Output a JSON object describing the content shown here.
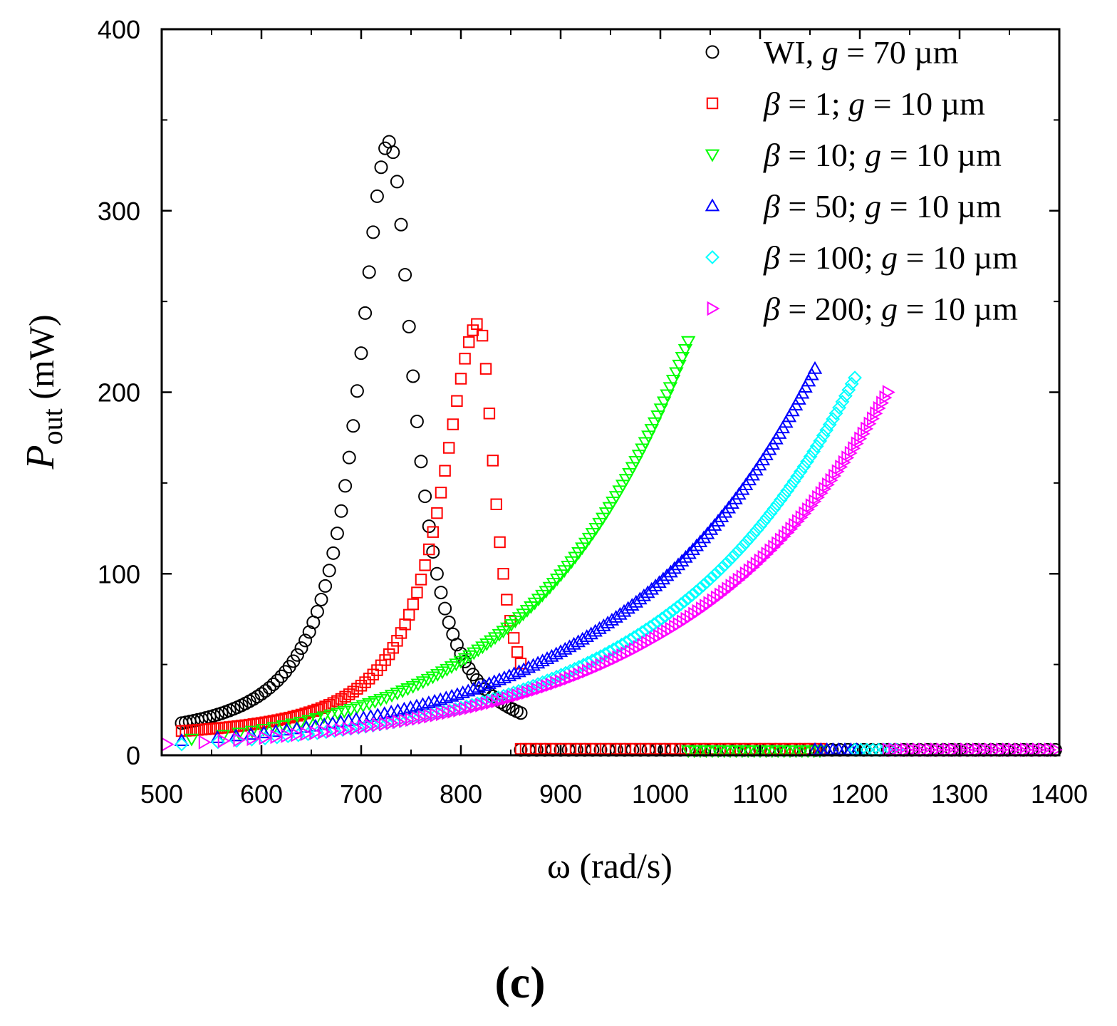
{
  "chart_data": {
    "type": "scatter",
    "title": "",
    "xlabel": "ω (rad/s)",
    "ylabel": {
      "main": "P",
      "sub": "out",
      "unit": " (mW)"
    },
    "xlim": [
      500,
      1400
    ],
    "ylim": [
      0,
      400
    ],
    "xticks": [
      500,
      600,
      700,
      800,
      900,
      1000,
      1100,
      1200,
      1300,
      1400
    ],
    "yticks": [
      0,
      100,
      200,
      300,
      400
    ],
    "grid": false,
    "legend_position": "top-right",
    "panel_label": "(c)",
    "series": [
      {
        "name": "WI, g = 70 µm",
        "label_parts": [
          "WI, ",
          "g",
          " = 70 µm"
        ],
        "marker": "circle",
        "color": "#000000",
        "model": {
          "kind": "resonance",
          "peak_x": 728,
          "peak_y": 338,
          "hw_left": 38,
          "hw_right": 30,
          "base": 7,
          "start": 520,
          "end": 860,
          "step_left": 4,
          "step_right": 4
        },
        "tail": {
          "y": 3,
          "start": 860,
          "end": 1400,
          "step": 8
        }
      },
      {
        "name": "β = 1; g = 10 µm",
        "label_parts": [
          "β",
          " = 1; ",
          "g",
          " = 10 µm"
        ],
        "marker": "square",
        "color": "#ff0000",
        "model": {
          "kind": "resonance",
          "peak_x": 818,
          "peak_y": 238,
          "hw_left": 46,
          "hw_right": 20,
          "base": 8,
          "start": 520,
          "end": 860,
          "step_left": 4,
          "step_right": 3.5
        },
        "tail": {
          "y": 3.5,
          "start": 860,
          "end": 1160,
          "step": 5
        }
      },
      {
        "name": "β = 10;  g = 10 µm",
        "label_parts": [
          "β",
          " = 10;  ",
          "g",
          " = 10 µm"
        ],
        "marker": "triangle-down",
        "color": "#00ff00",
        "model": {
          "kind": "growth",
          "x0": 530,
          "y0": 9,
          "end_x": 1028,
          "end_y": 228,
          "n": 100
        },
        "tail": {
          "y": 2.5,
          "start": 1028,
          "end": 1160,
          "step": 6
        }
      },
      {
        "name": "β = 50; g = 10 µm",
        "label_parts": [
          "β",
          " = 50; ",
          "g",
          " = 10 µm"
        ],
        "marker": "triangle-up",
        "color": "#0000ff",
        "model": {
          "kind": "growth",
          "x0": 520,
          "y0": 8,
          "end_x": 1155,
          "end_y": 213,
          "n": 120
        },
        "tail": {
          "y": 3,
          "start": 1155,
          "end": 1200,
          "step": 6
        }
      },
      {
        "name": "β = 100; g = 10 µm",
        "label_parts": [
          "β",
          " = 100; ",
          "g",
          " = 10 µm"
        ],
        "marker": "diamond",
        "color": "#00ffff",
        "model": {
          "kind": "growth",
          "x0": 520,
          "y0": 6,
          "end_x": 1195,
          "end_y": 208,
          "n": 130
        },
        "tail": {
          "y": 3,
          "start": 1195,
          "end": 1240,
          "step": 6
        }
      },
      {
        "name": "β = 200; g = 10 µm",
        "label_parts": [
          "β",
          " = 200; ",
          "g",
          " = 10 µm"
        ],
        "marker": "triangle-right",
        "color": "#ff00ff",
        "model": {
          "kind": "growth",
          "x0": 505,
          "y0": 6,
          "end_x": 1228,
          "end_y": 200,
          "n": 140
        },
        "tail": {
          "y": 3,
          "start": 1228,
          "end": 1400,
          "step": 6
        }
      }
    ]
  }
}
